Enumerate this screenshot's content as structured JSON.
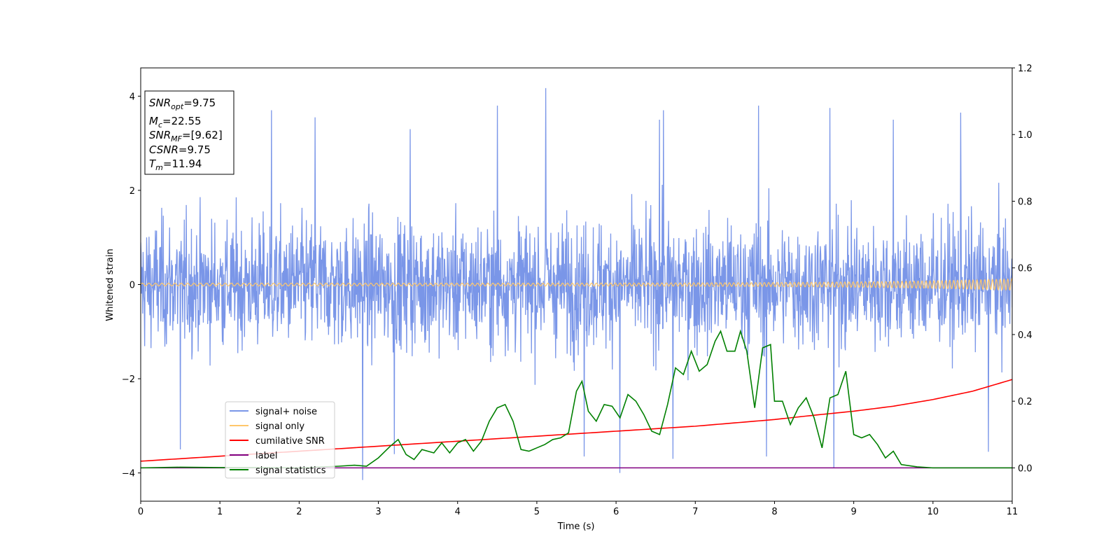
{
  "chart_data": {
    "type": "line",
    "xlabel": "Time (s)",
    "ylabel": "Whitened strain",
    "xlim": [
      0,
      11
    ],
    "ylim": [
      -4.6,
      4.6
    ],
    "y2lim": [
      -0.1,
      1.2
    ],
    "x_ticks": [
      0,
      1,
      2,
      3,
      4,
      5,
      6,
      7,
      8,
      9,
      10,
      11
    ],
    "y_ticks": [
      -4,
      -2,
      0,
      2,
      4
    ],
    "y_tick_labels": [
      "−4",
      "−2",
      "0",
      "2",
      "4"
    ],
    "y2_ticks": [
      0.0,
      0.2,
      0.4,
      0.6,
      0.8,
      1.0,
      1.2
    ],
    "y2_tick_labels": [
      "0.0",
      "0.2",
      "0.4",
      "0.6",
      "0.8",
      "1.0",
      "1.2"
    ],
    "grid": false,
    "legend_position": "bottom-left",
    "legend": [
      {
        "label": "signal+ noise",
        "color": "#7a96e8"
      },
      {
        "label": "signal only",
        "color": "#ffc76b"
      },
      {
        "label": "cumilative SNR",
        "color": "#ff0000"
      },
      {
        "label": "label",
        "color": "#800080"
      },
      {
        "label": "signal statistics",
        "color": "#008000"
      }
    ],
    "annotation": {
      "lines": [
        {
          "name": "SNR",
          "sub": "opt",
          "value": "=9.75"
        },
        {
          "name": "M",
          "sub": "c",
          "value": "=22.55"
        },
        {
          "name": "SNR",
          "sub": "MF",
          "value": "=[9.62]"
        },
        {
          "name": "CSNR",
          "sub": "",
          "value": "=9.75"
        },
        {
          "name": "T",
          "sub": "m",
          "value": "=11.94"
        }
      ]
    },
    "series": [
      {
        "name": "signal+ noise",
        "axis": "left",
        "color": "#7a96e8",
        "description_values": {
          "x_range": [
            0,
            11
          ],
          "typical_range": [
            -2.0,
            2.4
          ],
          "max": 4.17,
          "max_at_x": 5.11,
          "min": -4.15,
          "min_at_x": 2.8,
          "points_drawn": 2200
        },
        "peaks": [
          {
            "x": 1.65,
            "y": 3.7
          },
          {
            "x": 2.2,
            "y": 3.55
          },
          {
            "x": 3.4,
            "y": 3.3
          },
          {
            "x": 4.5,
            "y": 3.8
          },
          {
            "x": 5.11,
            "y": 4.17
          },
          {
            "x": 6.55,
            "y": 3.5
          },
          {
            "x": 6.6,
            "y": 3.7
          },
          {
            "x": 7.8,
            "y": 3.8
          },
          {
            "x": 8.7,
            "y": 3.75
          },
          {
            "x": 9.5,
            "y": 3.5
          },
          {
            "x": 10.35,
            "y": 3.65
          },
          {
            "x": 0.5,
            "y": -3.5
          },
          {
            "x": 2.8,
            "y": -4.15
          },
          {
            "x": 3.2,
            "y": -3.6
          },
          {
            "x": 5.6,
            "y": -3.65
          },
          {
            "x": 6.05,
            "y": -4.0
          },
          {
            "x": 6.72,
            "y": -3.7
          },
          {
            "x": 7.9,
            "y": -3.65
          },
          {
            "x": 8.75,
            "y": -3.9
          },
          {
            "x": 10.7,
            "y": -3.55
          }
        ]
      },
      {
        "name": "signal only",
        "axis": "left",
        "color": "#ffc76b",
        "description_values": {
          "type": "chirp",
          "start_amplitude": 0.03,
          "end_amplitude": 0.12,
          "x_range": [
            0,
            11
          ]
        }
      },
      {
        "name": "cumilative SNR",
        "axis": "right",
        "color": "#ff0000",
        "x": [
          0,
          1,
          2,
          3,
          4,
          5,
          6,
          7,
          8,
          8.5,
          9,
          9.5,
          10,
          10.5,
          11
        ],
        "y": [
          0.02,
          0.035,
          0.05,
          0.065,
          0.08,
          0.095,
          0.11,
          0.125,
          0.145,
          0.158,
          0.17,
          0.185,
          0.205,
          0.23,
          0.265
        ]
      },
      {
        "name": "label",
        "axis": "right",
        "color": "#800080",
        "x": [
          0,
          11
        ],
        "y": [
          0.0,
          0.0
        ]
      },
      {
        "name": "signal statistics",
        "axis": "right",
        "color": "#008000",
        "x": [
          0,
          0.5,
          1,
          1.5,
          2,
          2.5,
          2.7,
          2.85,
          3.0,
          3.15,
          3.25,
          3.35,
          3.45,
          3.55,
          3.7,
          3.8,
          3.9,
          4.0,
          4.1,
          4.2,
          4.3,
          4.4,
          4.5,
          4.6,
          4.7,
          4.8,
          4.9,
          5.0,
          5.1,
          5.2,
          5.3,
          5.4,
          5.5,
          5.57,
          5.65,
          5.75,
          5.85,
          5.95,
          6.05,
          6.15,
          6.25,
          6.35,
          6.45,
          6.55,
          6.65,
          6.75,
          6.85,
          6.95,
          7.05,
          7.15,
          7.25,
          7.32,
          7.4,
          7.5,
          7.57,
          7.65,
          7.75,
          7.85,
          7.95,
          8.0,
          8.1,
          8.2,
          8.3,
          8.4,
          8.5,
          8.6,
          8.7,
          8.8,
          8.9,
          9.0,
          9.1,
          9.2,
          9.3,
          9.4,
          9.5,
          9.6,
          9.8,
          10.0,
          11
        ],
        "y": [
          0.0,
          0.002,
          0.001,
          0.001,
          0.0,
          0.005,
          0.008,
          0.005,
          0.03,
          0.065,
          0.085,
          0.04,
          0.025,
          0.055,
          0.045,
          0.075,
          0.045,
          0.075,
          0.085,
          0.05,
          0.08,
          0.14,
          0.18,
          0.19,
          0.14,
          0.055,
          0.05,
          0.06,
          0.07,
          0.085,
          0.09,
          0.105,
          0.23,
          0.26,
          0.17,
          0.14,
          0.19,
          0.185,
          0.15,
          0.22,
          0.2,
          0.16,
          0.11,
          0.1,
          0.19,
          0.3,
          0.28,
          0.35,
          0.29,
          0.31,
          0.38,
          0.41,
          0.35,
          0.35,
          0.41,
          0.35,
          0.18,
          0.36,
          0.37,
          0.2,
          0.2,
          0.13,
          0.18,
          0.21,
          0.15,
          0.06,
          0.21,
          0.22,
          0.29,
          0.1,
          0.09,
          0.1,
          0.07,
          0.03,
          0.05,
          0.01,
          0.003,
          0.0,
          0.0
        ]
      }
    ]
  }
}
